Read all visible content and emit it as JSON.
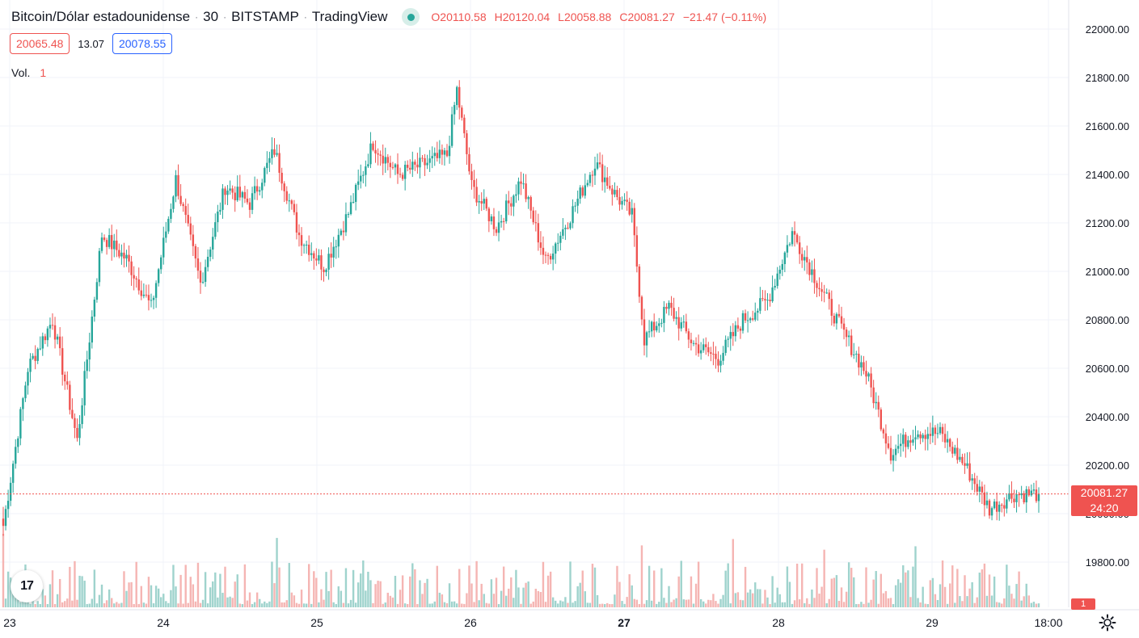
{
  "header": {
    "symbol": "Bitcoin/Dólar estadounidense",
    "interval": "30",
    "exchange": "BITSTAMP",
    "provider": "TradingView",
    "open": "O20110.58",
    "high": "H20120.04",
    "low": "L20058.88",
    "close": "C20081.27",
    "change": "−21.47 (−0.11%)",
    "sep": "·"
  },
  "quote": {
    "bid": "20065.48",
    "spread": "13.07",
    "ask": "20078.55"
  },
  "volume_legend": {
    "label": "Vol.",
    "value": "1"
  },
  "last_price": {
    "price": "20081.27",
    "countdown": "24:20"
  },
  "volume_badge": "1",
  "logo_text": "17",
  "colors": {
    "up": "#26a69a",
    "down": "#ef5350",
    "up_vol": "#9fd3cd",
    "down_vol": "#f5b5b3",
    "grid": "#f0f3fa"
  },
  "icons": {
    "settings": "gear-icon",
    "status": "market-open-dot-icon",
    "logo": "tradingview-logo-icon"
  },
  "chart_data": {
    "type": "candlestick",
    "interval_minutes": 30,
    "y_ticks": [
      "22000.00",
      "21800.00",
      "21600.00",
      "21400.00",
      "21200.00",
      "21000.00",
      "20800.00",
      "20600.00",
      "20400.00",
      "20200.00",
      "20000.00",
      "19800.00"
    ],
    "ylim": [
      19800,
      22000
    ],
    "x_ticks": [
      "23",
      "24",
      "25",
      "26",
      "27",
      "28",
      "29",
      "18:00"
    ],
    "last_close": 20081.27,
    "anchor_closes": [
      [
        0,
        19950
      ],
      [
        10,
        20600
      ],
      [
        20,
        20800
      ],
      [
        30,
        20300
      ],
      [
        40,
        21150
      ],
      [
        50,
        21050
      ],
      [
        60,
        20850
      ],
      [
        70,
        21380
      ],
      [
        80,
        20950
      ],
      [
        90,
        21350
      ],
      [
        100,
        21280
      ],
      [
        110,
        21500
      ],
      [
        120,
        21150
      ],
      [
        130,
        21020
      ],
      [
        140,
        21240
      ],
      [
        150,
        21530
      ],
      [
        160,
        21400
      ],
      [
        170,
        21440
      ],
      [
        180,
        21480
      ],
      [
        184,
        21750
      ],
      [
        190,
        21350
      ],
      [
        200,
        21180
      ],
      [
        210,
        21380
      ],
      [
        220,
        21040
      ],
      [
        230,
        21230
      ],
      [
        240,
        21450
      ],
      [
        248,
        21320
      ],
      [
        255,
        21230
      ],
      [
        260,
        20720
      ],
      [
        270,
        20850
      ],
      [
        280,
        20700
      ],
      [
        290,
        20640
      ],
      [
        300,
        20800
      ],
      [
        310,
        20880
      ],
      [
        320,
        21160
      ],
      [
        330,
        20960
      ],
      [
        340,
        20760
      ],
      [
        350,
        20580
      ],
      [
        360,
        20250
      ],
      [
        370,
        20340
      ],
      [
        380,
        20330
      ],
      [
        390,
        20200
      ],
      [
        400,
        20020
      ],
      [
        410,
        20080
      ],
      [
        420,
        20081.27
      ]
    ]
  }
}
